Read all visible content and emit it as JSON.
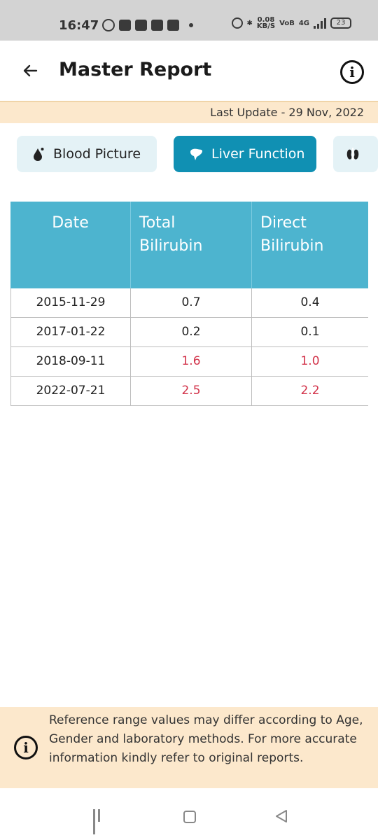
{
  "status_bar": {
    "time": "16:47",
    "net_speed_value": "0.08",
    "net_speed_unit": "KB/S",
    "network_label": "4G",
    "battery": "23"
  },
  "app_bar": {
    "title": "Master Report",
    "back_icon": "back-arrow-icon",
    "info_icon": "info-icon",
    "info_glyph": "i"
  },
  "last_update": "Last Update - 29 Nov, 2022",
  "tabs": [
    {
      "label": "Blood Picture",
      "icon": "blood-drop-icon",
      "active": false
    },
    {
      "label": "Liver Function",
      "icon": "liver-icon",
      "active": true
    },
    {
      "label": "",
      "icon": "kidney-icon",
      "active": false
    }
  ],
  "table": {
    "headers": [
      "Date",
      "Total Bilirubin",
      "Direct Bilirubin"
    ],
    "rows": [
      {
        "date": "2015-11-29",
        "total": "0.7",
        "direct": "0.4"
      },
      {
        "date": "2017-01-22",
        "total": "0.2",
        "direct": "0.1"
      },
      {
        "date": "2018-09-11",
        "total": "1.6",
        "direct": "1.0"
      },
      {
        "date": "2022-07-21",
        "total": "2.5",
        "direct": "2.2"
      }
    ]
  },
  "disclaimer": "Reference range values may differ according to Age, Gender and laboratory methods. For more accurate information kindly refer to original reports.",
  "colors": {
    "accent": "#1090b3",
    "header_bg": "#4db4cf",
    "warning_bg": "#fce8cc",
    "abnormal_value": "#d2334a"
  }
}
